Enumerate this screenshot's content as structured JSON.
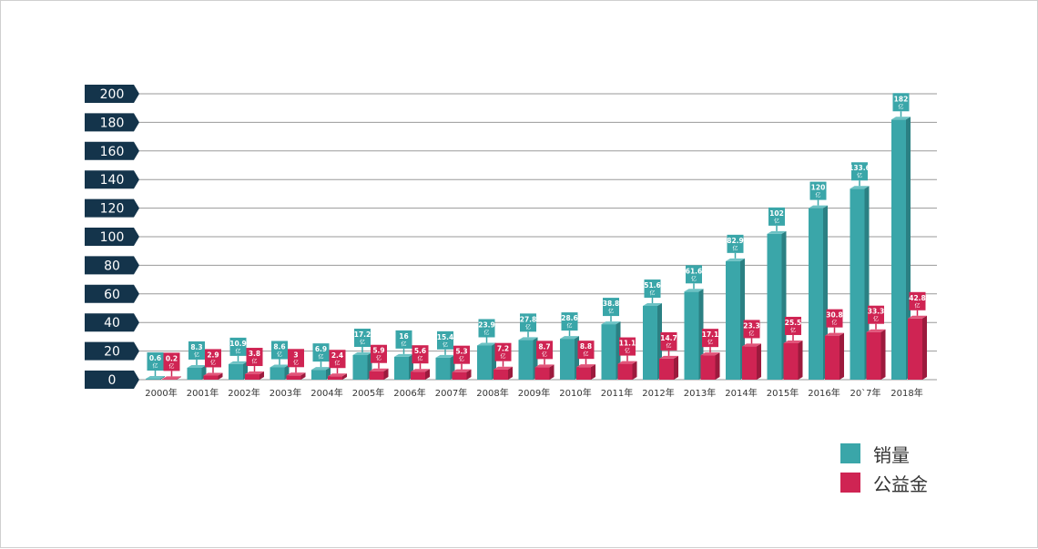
{
  "colors": {
    "sales": "#3aa6a9",
    "sales_dark": "#2b8083",
    "sales_top": "#6cc2c4",
    "charity": "#cf2453",
    "charity_dark": "#9c1a3d",
    "charity_top": "#e2557a",
    "axis_tab": "#14344b",
    "grid": "#9a9a9a",
    "text": "#333333"
  },
  "chart_data": {
    "type": "bar",
    "y_ticks": [
      "0",
      "20",
      "40",
      "60",
      "80",
      "100",
      "120",
      "140",
      "160",
      "180",
      "200"
    ],
    "ylim": [
      0,
      200
    ],
    "grid": true,
    "legend": "bottom-right",
    "categories": [
      "2000年",
      "2001年",
      "2002年",
      "2003年",
      "2004年",
      "2005年",
      "2006年",
      "2007年",
      "2008年",
      "2009年",
      "2010年",
      "2011年",
      "2012年",
      "2013年",
      "2014年",
      "2015年",
      "2016年",
      "20`7年",
      "2018年"
    ],
    "series": [
      {
        "name": "销量",
        "values": [
          0.6,
          8.3,
          10.9,
          8.6,
          6.9,
          17.2,
          16,
          15.4,
          23.9,
          27.8,
          28.6,
          38.8,
          51.6,
          61.6,
          82.9,
          102,
          120,
          133.6,
          182
        ],
        "labels": [
          "0.6",
          "8.3",
          "10.9",
          "8.6",
          "6.9",
          "17.2",
          "16",
          "15.4",
          "23.9",
          "27.8",
          "28.6",
          "38.8",
          "51.6",
          "61.6",
          "82.9",
          "102",
          "120",
          "133.6",
          "182"
        ]
      },
      {
        "name": "公益金",
        "values": [
          0.2,
          2.9,
          3.8,
          3,
          2.4,
          5.9,
          5.6,
          5.3,
          7.2,
          8.7,
          8.8,
          11.1,
          14.7,
          17.1,
          23.3,
          25.5,
          30.8,
          33.3,
          42.8
        ],
        "labels": [
          "0.2",
          "2.9",
          "3.8",
          "3",
          "2.4",
          "5.9",
          "5.6",
          "5.3",
          "7.2",
          "8.7",
          "8.8",
          "11.1",
          "14.7",
          "17.1",
          "23.3",
          "25.5",
          "30.8",
          "33.3",
          "42.8"
        ]
      }
    ],
    "unit_label": "亿"
  },
  "legend": {
    "sales_label": "销量",
    "charity_label": "公益金"
  }
}
